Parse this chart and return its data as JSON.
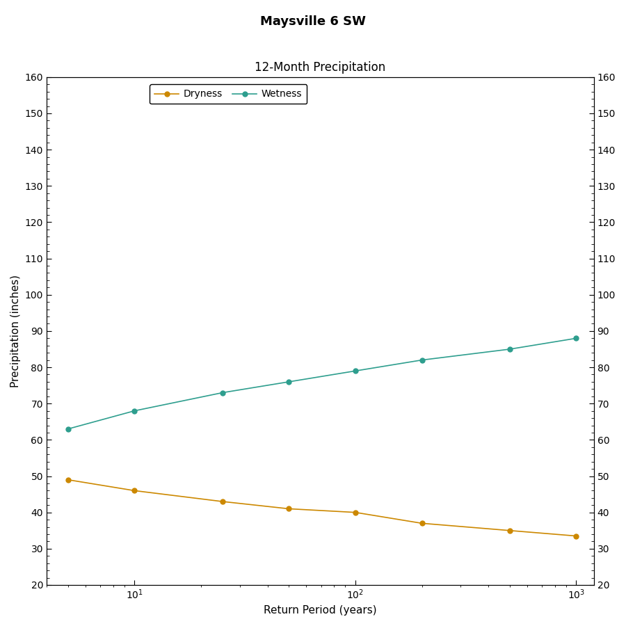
{
  "title": "Maysville 6 SW",
  "subtitle": "12-Month Precipitation",
  "xlabel": "Return Period (years)",
  "ylabel": "Precipitation (inches)",
  "x_values": [
    5,
    10,
    25,
    50,
    100,
    200,
    500,
    1000
  ],
  "wetness_values": [
    63.0,
    68.0,
    73.0,
    76.0,
    79.0,
    82.0,
    85.0,
    88.0
  ],
  "dryness_values": [
    49.0,
    46.0,
    43.0,
    41.0,
    40.0,
    37.0,
    35.0,
    33.5
  ],
  "wetness_color": "#2e9e8e",
  "dryness_color": "#cc8800",
  "ylim": [
    20,
    160
  ],
  "yticks": [
    20,
    30,
    40,
    50,
    60,
    70,
    80,
    90,
    100,
    110,
    120,
    130,
    140,
    150,
    160
  ],
  "background_color": "#ffffff",
  "plot_bg_color": "#ffffff",
  "legend_labels": [
    "Dryness",
    "Wetness"
  ],
  "line_width": 1.2,
  "marker_size": 5,
  "title_fontsize": 13,
  "subtitle_fontsize": 12,
  "axis_label_fontsize": 11,
  "tick_fontsize": 10,
  "legend_fontsize": 10
}
